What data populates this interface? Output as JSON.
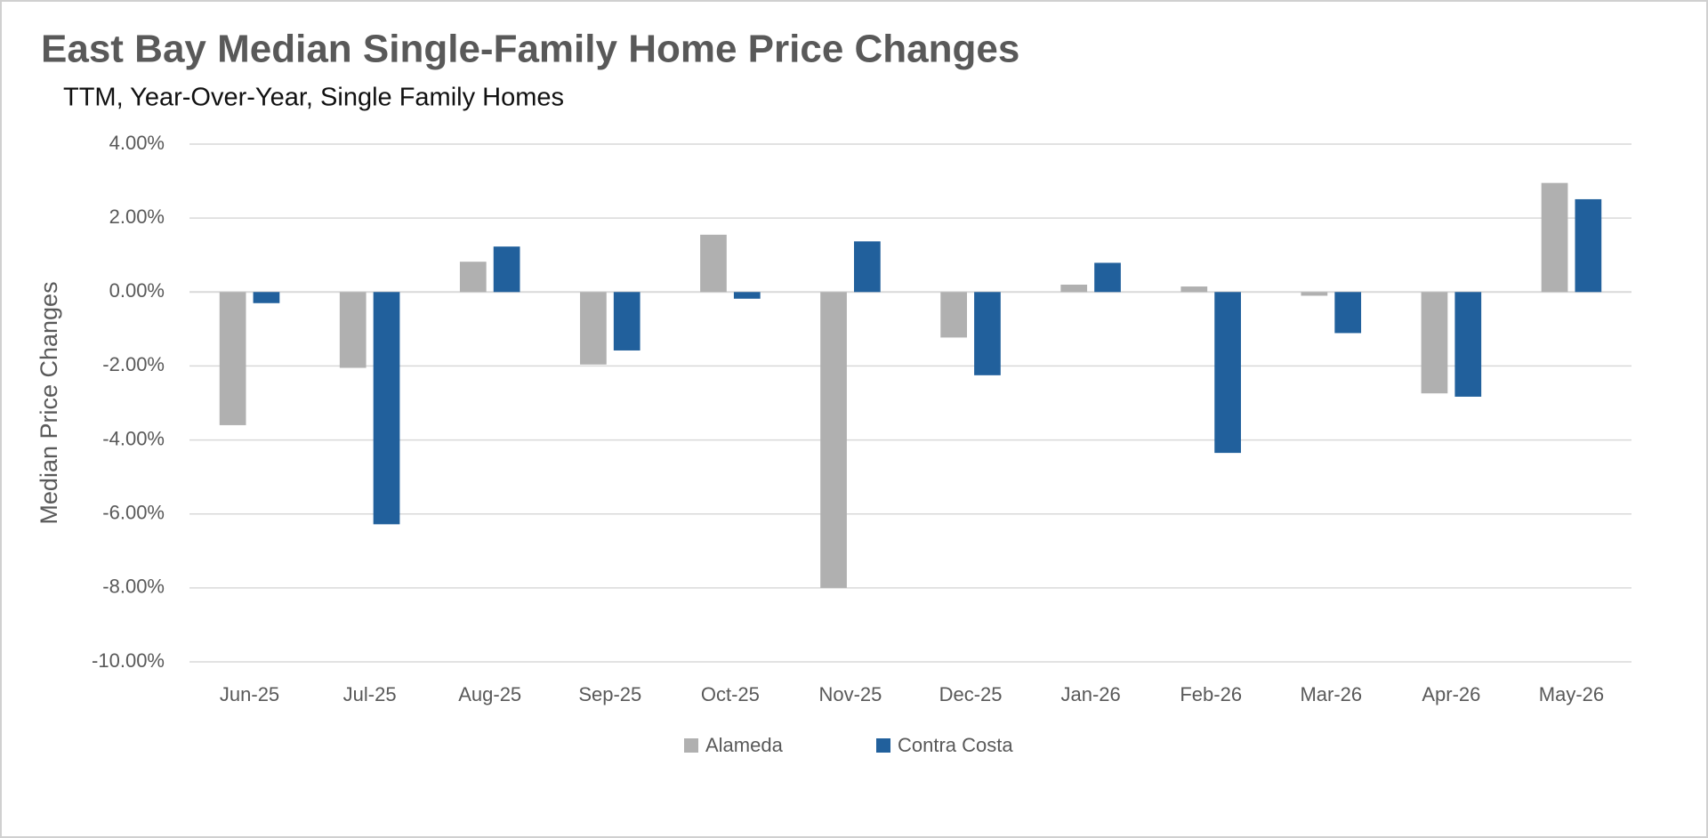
{
  "chart_data": {
    "type": "bar",
    "title": "East Bay Median Single-Family Home Price Changes",
    "subtitle": "TTM, Year-Over-Year, Single Family Homes",
    "y_label": "Median Price Changes",
    "categories": [
      "Jun-25",
      "Jul-25",
      "Aug-25",
      "Sep-25",
      "Oct-25",
      "Nov-25",
      "Dec-25",
      "Jan-26",
      "Feb-26",
      "Mar-26",
      "Apr-26",
      "May-26"
    ],
    "series": [
      {
        "name": "Alameda",
        "color": "#b0b0b0",
        "values": [
          -3.6,
          -2.05,
          0.82,
          -1.96,
          1.55,
          -8.0,
          -1.23,
          0.2,
          0.15,
          -0.1,
          -2.74,
          2.95
        ]
      },
      {
        "name": "Contra Costa",
        "color": "#21609c",
        "values": [
          -0.3,
          -6.28,
          1.23,
          -1.58,
          -0.18,
          1.37,
          -2.25,
          0.79,
          -4.35,
          -1.11,
          -2.83,
          2.51
        ]
      }
    ],
    "ylim": [
      -10,
      4
    ],
    "yticks": [
      {
        "value": -10,
        "label": "-10.00%"
      },
      {
        "value": -8,
        "label": "-8.00%"
      },
      {
        "value": -6,
        "label": "-6.00%"
      },
      {
        "value": -4,
        "label": "-4.00%"
      },
      {
        "value": -2,
        "label": "-2.00%"
      },
      {
        "value": 0,
        "label": "0.00%"
      },
      {
        "value": 2,
        "label": "2.00%"
      },
      {
        "value": 4,
        "label": "4.00%"
      }
    ],
    "grid": true,
    "legend": "bottom"
  }
}
